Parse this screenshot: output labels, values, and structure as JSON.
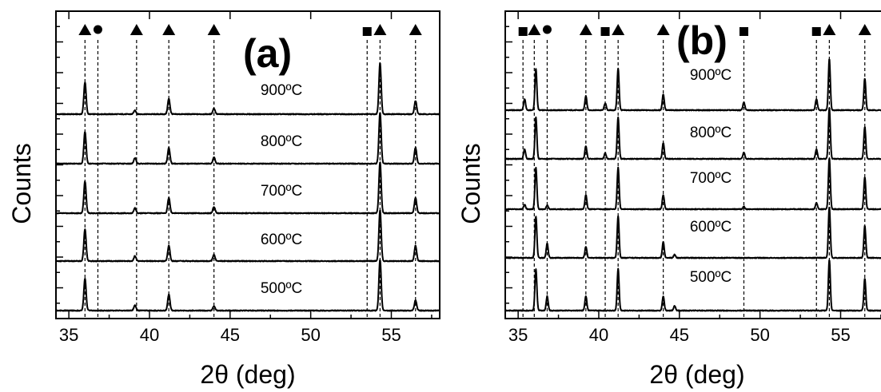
{
  "chart_data": [
    {
      "type": "line",
      "panel_label": "(a)",
      "xlabel": "2θ (deg)",
      "ylabel": "Counts",
      "xlim": [
        34.2,
        58.0
      ],
      "xticks": [
        35,
        40,
        45,
        50,
        55
      ],
      "y_ticks_labeled": false,
      "grid": false,
      "legend": "none",
      "phase_markers": [
        {
          "symbol": "triangle",
          "x": 36.0
        },
        {
          "symbol": "circle",
          "x": 36.8
        },
        {
          "symbol": "triangle",
          "x": 39.2
        },
        {
          "symbol": "triangle",
          "x": 41.2
        },
        {
          "symbol": "triangle",
          "x": 44.0
        },
        {
          "symbol": "square",
          "x": 53.5
        },
        {
          "symbol": "triangle",
          "x": 54.3
        },
        {
          "symbol": "triangle",
          "x": 56.5
        }
      ],
      "series": [
        {
          "label": "900ºC",
          "peaks": [
            {
              "x": 36.0,
              "h": 1.0
            },
            {
              "x": 39.1,
              "h": 0.12
            },
            {
              "x": 41.2,
              "h": 0.48
            },
            {
              "x": 44.0,
              "h": 0.18
            },
            {
              "x": 54.3,
              "h": 1.6
            },
            {
              "x": 56.5,
              "h": 0.42
            }
          ]
        },
        {
          "label": "800ºC",
          "peaks": [
            {
              "x": 36.0,
              "h": 1.0
            },
            {
              "x": 39.1,
              "h": 0.18
            },
            {
              "x": 41.2,
              "h": 0.5
            },
            {
              "x": 44.0,
              "h": 0.2
            },
            {
              "x": 54.3,
              "h": 1.6
            },
            {
              "x": 56.5,
              "h": 0.5
            }
          ]
        },
        {
          "label": "700ºC",
          "peaks": [
            {
              "x": 36.0,
              "h": 1.0
            },
            {
              "x": 39.1,
              "h": 0.16
            },
            {
              "x": 41.2,
              "h": 0.48
            },
            {
              "x": 44.0,
              "h": 0.2
            },
            {
              "x": 54.3,
              "h": 1.6
            },
            {
              "x": 56.5,
              "h": 0.48
            }
          ]
        },
        {
          "label": "600ºC",
          "peaks": [
            {
              "x": 36.0,
              "h": 1.0
            },
            {
              "x": 39.1,
              "h": 0.16
            },
            {
              "x": 41.2,
              "h": 0.48
            },
            {
              "x": 44.0,
              "h": 0.2
            },
            {
              "x": 54.3,
              "h": 1.6
            },
            {
              "x": 56.5,
              "h": 0.48
            }
          ]
        },
        {
          "label": "500ºC",
          "peaks": [
            {
              "x": 36.0,
              "h": 1.0
            },
            {
              "x": 39.1,
              "h": 0.16
            },
            {
              "x": 41.2,
              "h": 0.5
            },
            {
              "x": 44.0,
              "h": 0.14
            },
            {
              "x": 54.3,
              "h": 1.6
            },
            {
              "x": 56.5,
              "h": 0.32
            }
          ]
        }
      ]
    },
    {
      "type": "line",
      "panel_label": "(b)",
      "xlabel": "2θ (deg)",
      "ylabel": "Counts",
      "xlim": [
        34.2,
        58.0
      ],
      "xticks": [
        35,
        40,
        45,
        50,
        55
      ],
      "y_ticks_labeled": false,
      "grid": false,
      "legend": "none",
      "phase_markers": [
        {
          "symbol": "square",
          "x": 35.3
        },
        {
          "symbol": "triangle",
          "x": 36.0
        },
        {
          "symbol": "circle",
          "x": 36.8
        },
        {
          "symbol": "triangle",
          "x": 39.2
        },
        {
          "symbol": "square",
          "x": 40.4
        },
        {
          "symbol": "triangle",
          "x": 41.2
        },
        {
          "symbol": "triangle",
          "x": 44.0
        },
        {
          "symbol": "square",
          "x": 49.0
        },
        {
          "symbol": "square",
          "x": 53.5
        },
        {
          "symbol": "triangle",
          "x": 54.3
        },
        {
          "symbol": "triangle",
          "x": 56.5
        }
      ],
      "series": [
        {
          "label": "900ºC",
          "peaks": [
            {
              "x": 35.4,
              "h": 0.35
            },
            {
              "x": 36.1,
              "h": 1.3
            },
            {
              "x": 39.2,
              "h": 0.45
            },
            {
              "x": 40.4,
              "h": 0.22
            },
            {
              "x": 41.2,
              "h": 1.3
            },
            {
              "x": 44.0,
              "h": 0.5
            },
            {
              "x": 49.0,
              "h": 0.25
            },
            {
              "x": 53.5,
              "h": 0.35
            },
            {
              "x": 54.3,
              "h": 1.6
            },
            {
              "x": 56.5,
              "h": 1.0
            }
          ]
        },
        {
          "label": "800ºC",
          "peaks": [
            {
              "x": 35.4,
              "h": 0.3
            },
            {
              "x": 36.1,
              "h": 1.3
            },
            {
              "x": 39.2,
              "h": 0.4
            },
            {
              "x": 40.4,
              "h": 0.18
            },
            {
              "x": 41.2,
              "h": 1.3
            },
            {
              "x": 44.0,
              "h": 0.5
            },
            {
              "x": 49.0,
              "h": 0.2
            },
            {
              "x": 53.5,
              "h": 0.3
            },
            {
              "x": 54.3,
              "h": 1.6
            },
            {
              "x": 56.5,
              "h": 1.0
            }
          ]
        },
        {
          "label": "700ºC",
          "peaks": [
            {
              "x": 35.4,
              "h": 0.15
            },
            {
              "x": 36.1,
              "h": 1.3
            },
            {
              "x": 36.8,
              "h": 0.12
            },
            {
              "x": 39.2,
              "h": 0.45
            },
            {
              "x": 41.2,
              "h": 1.3
            },
            {
              "x": 44.0,
              "h": 0.45
            },
            {
              "x": 49.0,
              "h": 0.08
            },
            {
              "x": 53.5,
              "h": 0.2
            },
            {
              "x": 54.3,
              "h": 1.6
            },
            {
              "x": 56.5,
              "h": 1.0
            }
          ]
        },
        {
          "label": "600ºC",
          "peaks": [
            {
              "x": 36.1,
              "h": 1.3
            },
            {
              "x": 36.8,
              "h": 0.45
            },
            {
              "x": 39.2,
              "h": 0.35
            },
            {
              "x": 41.2,
              "h": 1.3
            },
            {
              "x": 44.0,
              "h": 0.5
            },
            {
              "x": 44.7,
              "h": 0.1
            },
            {
              "x": 54.3,
              "h": 1.6
            },
            {
              "x": 56.5,
              "h": 1.0
            }
          ]
        },
        {
          "label": "500ºC",
          "peaks": [
            {
              "x": 36.1,
              "h": 1.3
            },
            {
              "x": 36.8,
              "h": 0.45
            },
            {
              "x": 39.2,
              "h": 0.45
            },
            {
              "x": 41.2,
              "h": 1.3
            },
            {
              "x": 44.0,
              "h": 0.45
            },
            {
              "x": 44.7,
              "h": 0.15
            },
            {
              "x": 54.3,
              "h": 1.6
            },
            {
              "x": 56.5,
              "h": 1.0
            }
          ]
        }
      ]
    }
  ]
}
